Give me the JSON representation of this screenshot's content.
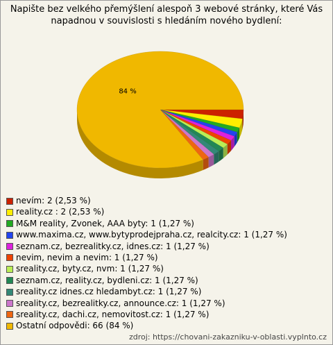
{
  "chart_data": {
    "type": "pie",
    "title": "Napište bez velkého přemýšlení alespoň 3 webové stránky, které Vás napadnou v souvislosti s hledáním nového bydlení:",
    "categories": [
      "nevím: 2 (2,53 %)",
      "reality.cz  : 2 (2,53 %)",
      "M&M reality, Zvonek, AAA byty: 1 (1,27 %)",
      "www.maxima.cz, www.bytyprodejpraha.cz, realcity.cz: 1 (1,27 %)",
      "seznam.cz, bezrealitky.cz, idnes.cz: 1 (1,27 %)",
      "nevim, nevim a nevim: 1 (1,27 %)",
      "sreality.cz, byty.cz, nvm: 1 (1,27 %)",
      "seznam.cz, reality.cz, bydleni.cz: 1 (1,27 %)",
      "sreality.cz idnes.cz hledambyt.cz: 1 (1,27 %)",
      "sreality.cz, bezrealitky.cz, announce.cz: 1 (1,27 %)",
      "sreality.cz, dachi.cz, nemovitost.cz: 1 (1,27 %)",
      "Ostatní odpovědi: 66 (84 %)"
    ],
    "values": [
      2.53,
      2.53,
      1.27,
      1.27,
      1.27,
      1.27,
      1.27,
      1.27,
      1.27,
      1.27,
      1.27,
      84
    ],
    "value_labels": [
      null,
      null,
      null,
      null,
      null,
      null,
      null,
      null,
      null,
      null,
      null,
      "84 %"
    ],
    "colors": [
      "#cc2200",
      "#ffee00",
      "#22aa22",
      "#2244ee",
      "#dd22dd",
      "#ee4400",
      "#bbee55",
      "#228855",
      "#338877",
      "#cc77cc",
      "#ee6611",
      "#f0b800"
    ],
    "source": "zdroj: https://chovani-zakazniku-v-oblasti.vyplnto.cz"
  }
}
